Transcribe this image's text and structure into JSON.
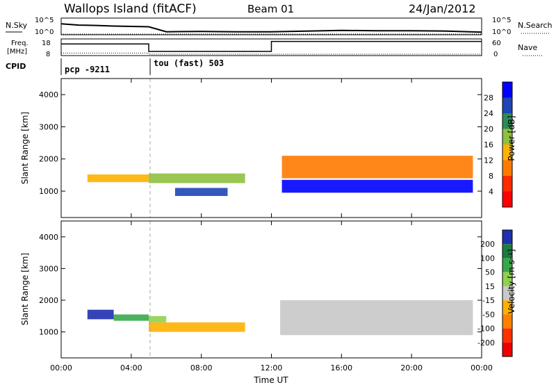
{
  "header": {
    "site": "Wallops Island (fitACF)",
    "beam": "Beam 01",
    "date": "24/Jan/2012"
  },
  "strip1": {
    "left_label": "N.Sky",
    "right_label": "N.Search",
    "tick_top": "10^5",
    "tick_bottom": "10^0"
  },
  "strip2": {
    "left_label_1": "Freq.",
    "left_label_2": "[MHz]",
    "right_label": "Nave",
    "tick_left_top": "18",
    "tick_left_bottom": "8",
    "tick_right_top": "60",
    "tick_right_bottom": "0"
  },
  "cpid": {
    "label": "CPID",
    "mode1": "pcp -9211",
    "mode2": "tou (fast) 503"
  },
  "chart_data": [
    {
      "type": "line",
      "title": "Noise strip",
      "x": [
        "00:00",
        "01:00",
        "02:00",
        "03:00",
        "04:00",
        "05:00",
        "06:00",
        "08:00",
        "10:00",
        "12:00",
        "14:00",
        "16:00",
        "18:00",
        "20:00",
        "22:00",
        "24:00"
      ],
      "series": [
        {
          "name": "N.Sky",
          "values": [
            3.3,
            2.9,
            2.8,
            2.6,
            2.5,
            2.4,
            0.9,
            1.0,
            0.9,
            0.9,
            1.1,
            1.3,
            1.2,
            1.2,
            1.1,
            0.8
          ]
        },
        {
          "name": "N.Search",
          "values": [
            0.2,
            0.2,
            0.2,
            0.2,
            0.2,
            0.2,
            0.2,
            0.2,
            0.2,
            0.2,
            0.2,
            0.2,
            0.2,
            0.2,
            0.2,
            0.2
          ]
        }
      ],
      "ylim": [
        0,
        5
      ],
      "yscale": "log10"
    },
    {
      "type": "line",
      "title": "Frequency / Nave strip",
      "x": [
        "00:00",
        "05:00",
        "05:00",
        "12:00",
        "12:00",
        "24:00"
      ],
      "series": [
        {
          "name": "Freq.",
          "values": [
            15.0,
            15.0,
            10.5,
            10.5,
            16.5,
            16.5
          ]
        },
        {
          "name": "Nave",
          "values": [
            9,
            9,
            5,
            5,
            5,
            5
          ]
        }
      ],
      "freq_ylim": [
        8,
        18
      ],
      "nave_ylim": [
        0,
        60
      ]
    },
    {
      "type": "heatmap",
      "xlabel": "",
      "ylabel": "Slant Range [km]",
      "xlim": [
        0,
        24
      ],
      "ylim": [
        180,
        4500
      ],
      "xticks": [
        "00:00",
        "04:00",
        "08:00",
        "12:00",
        "16:00",
        "20:00",
        "00:00"
      ],
      "yticks": [
        1000,
        2000,
        3000,
        4000
      ],
      "colorbar": {
        "label": "Power [dB]",
        "ticks": [
          "4",
          "8",
          "12",
          "16",
          "20",
          "24",
          "28"
        ],
        "colors": [
          "#0000ff",
          "#1e46b4",
          "#2e8b57",
          "#90c040",
          "#ffb300",
          "#ff7a00",
          "#ff2a00",
          "#ff0000"
        ]
      },
      "features": [
        {
          "t0": 1.5,
          "t1": 5.0,
          "r0": 1280,
          "r1": 1520,
          "value": 14
        },
        {
          "t0": 5.0,
          "t1": 10.5,
          "r0": 1250,
          "r1": 1550,
          "value": 18
        },
        {
          "t0": 6.5,
          "t1": 9.5,
          "r0": 850,
          "r1": 1100,
          "value": 26
        },
        {
          "t0": 12.6,
          "t1": 23.5,
          "r0": 950,
          "r1": 1350,
          "value": 28
        },
        {
          "t0": 12.6,
          "t1": 23.5,
          "r0": 1400,
          "r1": 2100,
          "value": 10
        }
      ]
    },
    {
      "type": "heatmap",
      "xlabel": "Time UT",
      "ylabel": "Slant Range [km]",
      "xlim": [
        0,
        24
      ],
      "ylim": [
        180,
        4500
      ],
      "xticks": [
        "00:00",
        "04:00",
        "08:00",
        "12:00",
        "16:00",
        "20:00",
        "00:00"
      ],
      "yticks": [
        1000,
        2000,
        3000,
        4000
      ],
      "colorbar": {
        "label": "Velocity [m s⁻¹]",
        "ticks": [
          "200",
          "100",
          "50",
          "15",
          "-15",
          "-50",
          "-100",
          "-200"
        ],
        "colors": [
          "#1f2fb0",
          "#1e7a3e",
          "#37a84a",
          "#8fd14f",
          "#c8c8c8",
          "#ffb000",
          "#ff8000",
          "#ff3000",
          "#ee0000"
        ]
      },
      "features": [
        {
          "t0": 1.5,
          "t1": 3.0,
          "r0": 1400,
          "r1": 1700,
          "value": 200
        },
        {
          "t0": 3.0,
          "t1": 5.0,
          "r0": 1350,
          "r1": 1550,
          "value": 50
        },
        {
          "t0": 5.0,
          "t1": 6.0,
          "r0": 1300,
          "r1": 1500,
          "value": 15
        },
        {
          "t0": 5.0,
          "t1": 10.5,
          "r0": 1000,
          "r1": 1300,
          "value": -50
        },
        {
          "t0": 12.5,
          "t1": 23.5,
          "r0": 900,
          "r1": 2000,
          "value": 0
        }
      ]
    }
  ]
}
